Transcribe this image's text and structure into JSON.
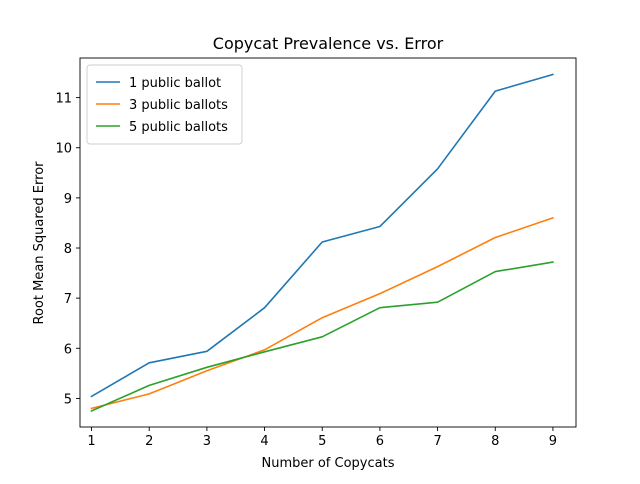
{
  "chart_data": {
    "type": "line",
    "title": "Copycat Prevalence vs. Error",
    "xlabel": "Number of Copycats",
    "ylabel": "Root Mean Squared Error",
    "x": [
      1,
      2,
      3,
      4,
      5,
      6,
      7,
      8,
      9
    ],
    "xlim": [
      0.8,
      9.4
    ],
    "ylim": [
      4.43,
      11.79
    ],
    "xticks": [
      "1",
      "2",
      "3",
      "4",
      "5",
      "6",
      "7",
      "8",
      "9"
    ],
    "yticks": [
      "5",
      "6",
      "7",
      "8",
      "9",
      "10",
      "11"
    ],
    "grid": false,
    "legend_position": "top-left",
    "series": [
      {
        "name": "1 public ballot",
        "color": "#1f77b4",
        "values": [
          5.04,
          5.71,
          5.94,
          6.81,
          8.12,
          8.43,
          9.58,
          11.13,
          11.46
        ]
      },
      {
        "name": "3 public ballots",
        "color": "#ff7f0e",
        "values": [
          4.8,
          5.09,
          5.55,
          5.97,
          6.61,
          7.09,
          7.63,
          8.21,
          8.6
        ]
      },
      {
        "name": "5 public ballots",
        "color": "#2ca02c",
        "values": [
          4.75,
          5.26,
          5.62,
          5.93,
          6.23,
          6.81,
          6.92,
          7.53,
          7.72
        ]
      }
    ]
  }
}
